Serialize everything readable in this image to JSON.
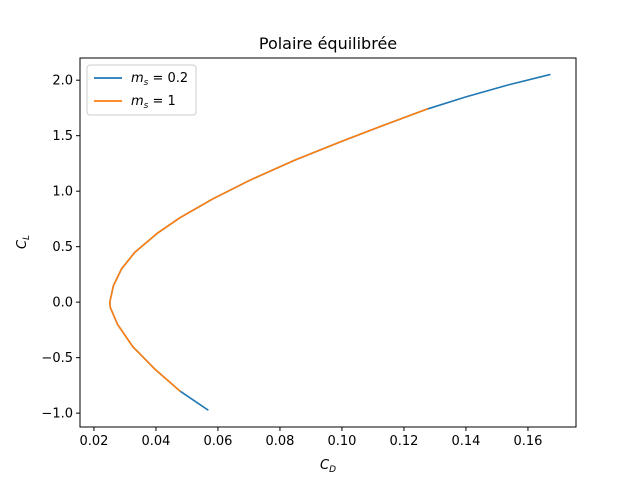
{
  "chart_data": {
    "type": "line",
    "title": "Polaire équilibrée",
    "xlabel": "C_D",
    "ylabel": "C_L",
    "xlim": [
      0.0155,
      0.1755
    ],
    "ylim": [
      -1.125,
      2.2
    ],
    "xticks": [
      {
        "value": 0.02,
        "label": "0.02"
      },
      {
        "value": 0.04,
        "label": "0.04"
      },
      {
        "value": 0.06,
        "label": "0.06"
      },
      {
        "value": 0.08,
        "label": "0.08"
      },
      {
        "value": 0.1,
        "label": "0.10"
      },
      {
        "value": 0.12,
        "label": "0.12"
      },
      {
        "value": 0.14,
        "label": "0.14"
      },
      {
        "value": 0.16,
        "label": "0.16"
      }
    ],
    "yticks": [
      {
        "value": -1.0,
        "label": "−1.0"
      },
      {
        "value": -0.5,
        "label": "−0.5"
      },
      {
        "value": 0.0,
        "label": "0.0"
      },
      {
        "value": 0.5,
        "label": "0.5"
      },
      {
        "value": 1.0,
        "label": "1.0"
      },
      {
        "value": 1.5,
        "label": "1.5"
      },
      {
        "value": 2.0,
        "label": "2.0"
      }
    ],
    "grid": false,
    "legend_position": "top-left",
    "series": [
      {
        "name": "m_s = 0.2",
        "color": "#1f77b4",
        "x": [
          0.0567,
          0.0477,
          0.0395,
          0.0325,
          0.0276,
          0.0253,
          0.0251,
          0.0263,
          0.0289,
          0.0332,
          0.0404,
          0.0477,
          0.0583,
          0.0704,
          0.0848,
          0.1,
          0.114,
          0.1275,
          0.14,
          0.154,
          0.167
        ],
        "y": [
          -0.97,
          -0.8,
          -0.6,
          -0.4,
          -0.2,
          -0.05,
          0.0,
          0.15,
          0.3,
          0.45,
          0.62,
          0.76,
          0.93,
          1.1,
          1.28,
          1.45,
          1.6,
          1.74,
          1.85,
          1.96,
          2.05
        ]
      },
      {
        "name": "m_s = 1",
        "color": "#ff7f0e",
        "x": [
          0.0477,
          0.0395,
          0.0325,
          0.0276,
          0.0253,
          0.0251,
          0.0263,
          0.0289,
          0.0332,
          0.0404,
          0.0477,
          0.0583,
          0.0704,
          0.0848,
          0.1,
          0.114,
          0.1275
        ],
        "y": [
          -0.8,
          -0.6,
          -0.4,
          -0.2,
          -0.05,
          0.0,
          0.15,
          0.3,
          0.45,
          0.62,
          0.76,
          0.93,
          1.1,
          1.28,
          1.45,
          1.6,
          1.74
        ]
      }
    ]
  }
}
